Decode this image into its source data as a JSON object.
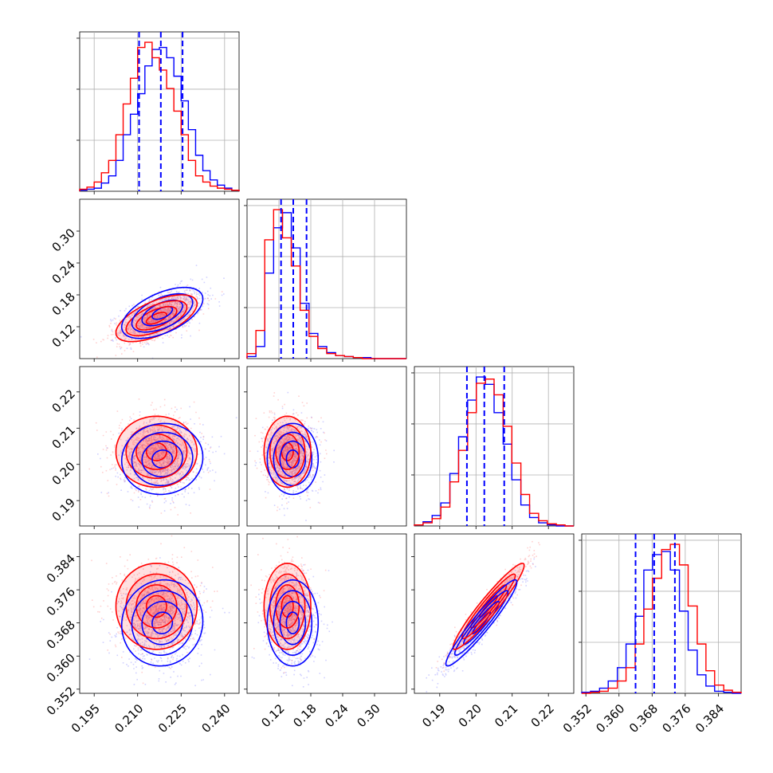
{
  "chart_data": {
    "type": "corner",
    "title": "",
    "series_colors": {
      "a": "#0000ff",
      "b": "#ff0000"
    },
    "grid": true,
    "parameters": [
      {
        "range": [
          0.19,
          0.245
        ],
        "ticks": [
          0.195,
          0.21,
          0.225,
          0.24
        ],
        "tick_labels": [
          "0.195",
          "0.210",
          "0.225",
          "0.240"
        ]
      },
      {
        "range": [
          0.06,
          0.36
        ],
        "ticks": [
          0.12,
          0.18,
          0.24,
          0.3
        ],
        "tick_labels": [
          "0.12",
          "0.18",
          "0.24",
          "0.30"
        ]
      },
      {
        "range": [
          0.183,
          0.227
        ],
        "ticks": [
          0.19,
          0.2,
          0.21,
          0.22
        ],
        "tick_labels": [
          "0.19",
          "0.20",
          "0.21",
          "0.22"
        ]
      },
      {
        "range": [
          0.351,
          0.3895
        ],
        "ticks": [
          0.352,
          0.36,
          0.368,
          0.376,
          0.384
        ],
        "tick_labels": [
          "0.352",
          "0.360",
          "0.368",
          "0.376",
          "0.384"
        ]
      }
    ],
    "quantile_lines": [
      [
        0.2105,
        0.218,
        0.2255
      ],
      [
        0.124,
        0.147,
        0.172
      ],
      [
        0.1975,
        0.2023,
        0.2078
      ],
      [
        0.364,
        0.3685,
        0.3735
      ]
    ],
    "marginals": [
      {
        "bins": [
          0.19,
          0.1925,
          0.195,
          0.1975,
          0.2,
          0.2025,
          0.205,
          0.2075,
          0.21,
          0.2125,
          0.215,
          0.2175,
          0.22,
          0.2225,
          0.225,
          0.2275,
          0.23,
          0.2325,
          0.235,
          0.2375,
          0.24,
          0.2425,
          0.245
        ],
        "counts_blue": [
          1,
          2,
          3,
          8,
          15,
          30,
          55,
          75,
          95,
          122,
          138,
          140,
          130,
          112,
          88,
          60,
          35,
          20,
          11,
          6,
          3,
          1
        ],
        "counts_red": [
          2,
          4,
          9,
          18,
          30,
          55,
          85,
          110,
          140,
          145,
          130,
          118,
          100,
          78,
          55,
          30,
          15,
          9,
          5,
          3,
          2,
          1
        ]
      },
      {
        "bins": [
          0.06,
          0.0767,
          0.0933,
          0.11,
          0.1267,
          0.1433,
          0.16,
          0.1767,
          0.1933,
          0.21,
          0.2267,
          0.2433,
          0.26,
          0.2767,
          0.2933,
          0.31,
          0.3267,
          0.3433,
          0.36
        ],
        "counts_blue": [
          2,
          12,
          85,
          130,
          145,
          110,
          55,
          25,
          12,
          6,
          3,
          2,
          1,
          1,
          0,
          0,
          0,
          0
        ],
        "counts_red": [
          5,
          28,
          118,
          148,
          120,
          92,
          48,
          22,
          10,
          5,
          3,
          2,
          1,
          0,
          0,
          0,
          0,
          0
        ]
      },
      {
        "bins": [
          0.183,
          0.1854,
          0.1879,
          0.1903,
          0.1928,
          0.1952,
          0.1977,
          0.2001,
          0.2026,
          0.205,
          0.2075,
          0.2099,
          0.2124,
          0.2148,
          0.2173,
          0.2197,
          0.2222,
          0.2246,
          0.227
        ],
        "counts_blue": [
          1,
          4,
          10,
          22,
          50,
          85,
          120,
          142,
          135,
          108,
          78,
          44,
          20,
          8,
          3,
          1,
          0,
          0
        ],
        "counts_red": [
          1,
          3,
          7,
          18,
          42,
          72,
          108,
          136,
          140,
          125,
          95,
          60,
          30,
          12,
          5,
          2,
          1,
          0
        ]
      },
      {
        "bins": [
          0.351,
          0.3531,
          0.3553,
          0.3574,
          0.3596,
          0.3617,
          0.3639,
          0.366,
          0.3681,
          0.3703,
          0.3724,
          0.3746,
          0.3767,
          0.3789,
          0.381,
          0.3831,
          0.3853,
          0.3874,
          0.3895
        ],
        "counts_blue": [
          1,
          2,
          5,
          12,
          25,
          48,
          75,
          120,
          135,
          138,
          120,
          80,
          42,
          18,
          7,
          2,
          1,
          0
        ],
        "counts_red": [
          0,
          1,
          2,
          5,
          12,
          25,
          48,
          82,
          112,
          140,
          145,
          125,
          85,
          48,
          22,
          8,
          3,
          1
        ]
      }
    ],
    "pairs": [
      {
        "i": 1,
        "j": 0,
        "blue": {
          "center": [
            0.2185,
            0.146
          ],
          "sd": [
            0.007,
            0.024
          ],
          "corr": 0.55
        },
        "red": {
          "center": [
            0.2165,
            0.136
          ],
          "sd": [
            0.007,
            0.022
          ],
          "corr": 0.62
        }
      },
      {
        "i": 2,
        "j": 0,
        "blue": {
          "center": [
            0.2185,
            0.2015
          ],
          "sd": [
            0.007,
            0.0049
          ],
          "corr": 0.05
        },
        "red": {
          "center": [
            0.2165,
            0.2035
          ],
          "sd": [
            0.007,
            0.0049
          ],
          "corr": 0.0
        }
      },
      {
        "i": 3,
        "j": 0,
        "blue": {
          "center": [
            0.2185,
            0.368
          ],
          "sd": [
            0.007,
            0.0052
          ],
          "corr": 0.05
        },
        "red": {
          "center": [
            0.2165,
            0.372
          ],
          "sd": [
            0.007,
            0.0052
          ],
          "corr": 0.0
        }
      },
      {
        "i": 2,
        "j": 1,
        "blue": {
          "center": [
            0.146,
            0.2015
          ],
          "sd": [
            0.024,
            0.0049
          ],
          "corr": 0.0
        },
        "red": {
          "center": [
            0.136,
            0.2035
          ],
          "sd": [
            0.022,
            0.0049
          ],
          "corr": 0.0
        }
      },
      {
        "i": 3,
        "j": 1,
        "blue": {
          "center": [
            0.146,
            0.368
          ],
          "sd": [
            0.024,
            0.0052
          ],
          "corr": 0.0
        },
        "red": {
          "center": [
            0.136,
            0.372
          ],
          "sd": [
            0.022,
            0.0052
          ],
          "corr": 0.0
        }
      },
      {
        "i": 3,
        "j": 2,
        "blue": {
          "center": [
            0.2015,
            0.368
          ],
          "sd": [
            0.0049,
            0.0052
          ],
          "corr": 0.95
        },
        "red": {
          "center": [
            0.2035,
            0.372
          ],
          "sd": [
            0.0049,
            0.0052
          ],
          "corr": 0.95
        }
      }
    ],
    "contour_levels_sigma": [
      0.5,
      1.0,
      1.5,
      2.0
    ],
    "scatter_points_per_panel": 900
  }
}
